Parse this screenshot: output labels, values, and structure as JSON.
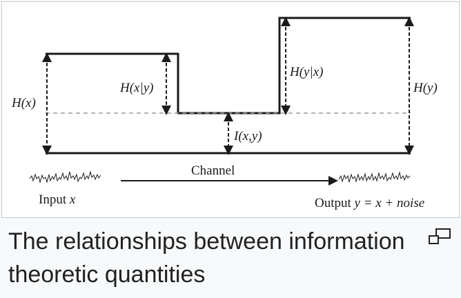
{
  "labels": {
    "hx": "H(x)",
    "hxy_cond": "H(x|y)",
    "hyx_cond": "H(y|x)",
    "hy": "H(y)",
    "ixy": "I(x,y)",
    "channel": "Channel",
    "input_prefix": "Input ",
    "input_var": "x",
    "output_prefix": "Output ",
    "output_expr": "y = x + noise"
  },
  "caption": {
    "text": "The relationships between information theoretic quantities"
  },
  "icons": {
    "enlarge": "enlarge-icon"
  },
  "colors": {
    "line": "#1a1a1a",
    "dashed_ref": "#9a9a9a",
    "caption_text": "#202122",
    "border": "#c8ccd1"
  }
}
